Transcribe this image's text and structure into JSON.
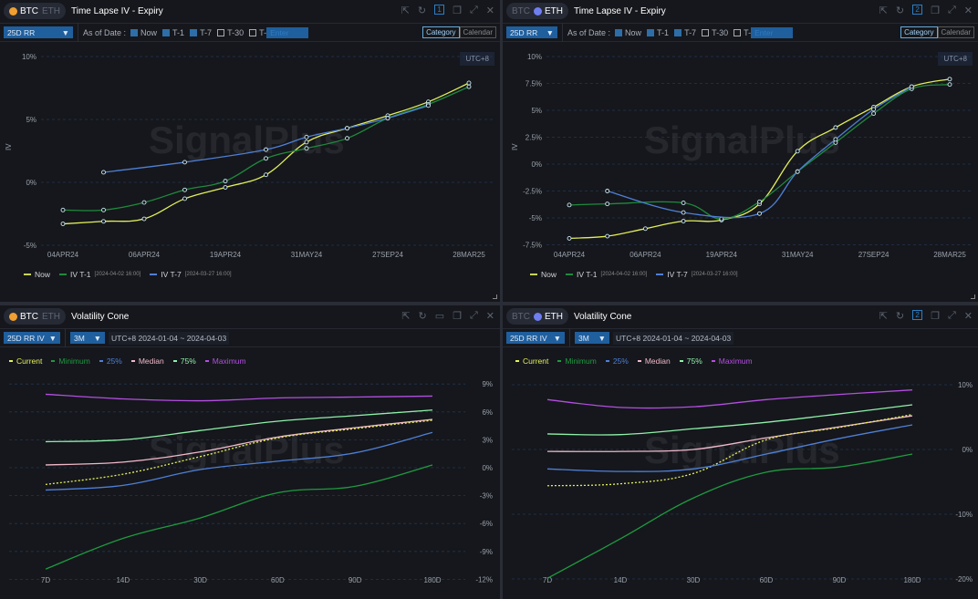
{
  "coins": {
    "btc": "BTC",
    "eth": "ETH"
  },
  "colors": {
    "btc": "#f0a030",
    "eth": "#6f7ff0",
    "now": "#e3ef5a",
    "t1": "#1f8a3c",
    "t7": "#4f7fd6",
    "current": "#e6f05a",
    "minimum": "#1f9a40",
    "p25": "#4f7fd6",
    "median": "#f0b8c8",
    "p75": "#8ff0a8",
    "maximum": "#b44ee0"
  },
  "icons": [
    "external-link-icon",
    "refresh-icon",
    "layout-number-icon",
    "copy-icon",
    "expand-icon",
    "close-icon"
  ],
  "watermark": "SignalPlus",
  "timelapse": {
    "title": "Time Lapse IV - Expiry",
    "metric": "25D RR",
    "as_of": "As of Date :",
    "checks": [
      {
        "label": "Now",
        "on": true
      },
      {
        "label": "T-1",
        "on": true
      },
      {
        "label": "T-7",
        "on": true
      },
      {
        "label": "T-30",
        "on": false
      },
      {
        "label": "T-",
        "on": false
      }
    ],
    "enter_placeholder": "Enter",
    "category": "Category",
    "calendar": "Calendar",
    "utc": "UTC+8",
    "ylabel": "IV",
    "legend": {
      "now": "Now",
      "t1": "IV T-1",
      "t1_date": "[2024-04-02 16:00]",
      "t7": "IV T-7",
      "t7_date": "[2024-03-27 16:00]"
    },
    "left_number": "1",
    "right_number": "2"
  },
  "cone": {
    "title": "Volatility Cone",
    "metric": "25D RR IV",
    "period": "3M",
    "range": "UTC+8 2024-01-04 ~ 2024-04-03",
    "legend": {
      "current": "Current",
      "minimum": "Minimum",
      "p25": "25%",
      "median": "Median",
      "p75": "75%",
      "maximum": "Maximum"
    },
    "right_number": "2"
  },
  "chart_data": [
    {
      "type": "line",
      "title": "BTC Time Lapse IV - Expiry",
      "ylabel": "IV",
      "ylim": [
        -5,
        10
      ],
      "yticks": [
        "10%",
        "5%",
        "0%",
        "-5%"
      ],
      "ytick_values": [
        10,
        5,
        0,
        -5
      ],
      "xticks": [
        "04APR24",
        "06APR24",
        "19APR24",
        "31MAY24",
        "27SEP24",
        "28MAR25"
      ],
      "xtick_index": [
        0,
        2,
        4,
        6,
        8,
        10
      ],
      "series": [
        {
          "name": "Now",
          "key": "now",
          "values": [
            -3.3,
            -3.1,
            -2.9,
            -1.3,
            -0.4,
            0.6,
            3.2,
            4.3,
            5.3,
            6.4,
            7.9
          ]
        },
        {
          "name": "IV T-1",
          "key": "t1",
          "values": [
            -2.2,
            -2.2,
            -1.6,
            -0.6,
            0.1,
            1.9,
            2.7,
            3.5,
            5.1,
            6.2,
            7.6
          ]
        },
        {
          "name": "IV T-7",
          "key": "t7",
          "values": [
            null,
            0.8,
            null,
            1.6,
            null,
            2.6,
            3.6,
            4.3,
            5.1,
            6.1,
            null
          ]
        }
      ]
    },
    {
      "type": "line",
      "title": "ETH Time Lapse IV - Expiry",
      "ylabel": "IV",
      "ylim": [
        -7.5,
        10
      ],
      "yticks": [
        "10%",
        "7.5%",
        "5%",
        "2.5%",
        "0%",
        "-2.5%",
        "-5%",
        "-7.5%"
      ],
      "ytick_values": [
        10,
        7.5,
        5,
        2.5,
        0,
        -2.5,
        -5,
        -7.5
      ],
      "xticks": [
        "04APR24",
        "06APR24",
        "19APR24",
        "31MAY24",
        "27SEP24",
        "28MAR25"
      ],
      "xtick_index": [
        0,
        2,
        4,
        6,
        8,
        10
      ],
      "series": [
        {
          "name": "Now",
          "key": "now",
          "values": [
            -6.9,
            -6.7,
            -6.0,
            -5.3,
            -5.2,
            -3.7,
            1.2,
            3.4,
            5.3,
            7.2,
            7.9
          ]
        },
        {
          "name": "IV T-1",
          "key": "t1",
          "values": [
            -3.8,
            -3.7,
            null,
            -3.6,
            -5.1,
            -3.5,
            -0.7,
            2.0,
            4.7,
            7.0,
            7.4
          ]
        },
        {
          "name": "IV T-7",
          "key": "t7",
          "values": [
            null,
            -2.5,
            null,
            -4.5,
            null,
            -4.6,
            -0.7,
            2.3,
            5.1,
            7.2,
            null
          ]
        }
      ]
    },
    {
      "type": "line",
      "title": "BTC Volatility Cone",
      "ylim": [
        -12,
        9
      ],
      "yticks": [
        "9%",
        "6%",
        "3%",
        "0%",
        "-3%",
        "-6%",
        "-9%",
        "-12%"
      ],
      "ytick_values": [
        9,
        6,
        3,
        0,
        -3,
        -6,
        -9,
        -12
      ],
      "x": [
        "7D",
        "14D",
        "30D",
        "60D",
        "90D",
        "180D"
      ],
      "series": [
        {
          "name": "Maximum",
          "key": "maximum",
          "values": [
            7.9,
            7.4,
            7.2,
            7.5,
            7.6,
            7.7
          ]
        },
        {
          "name": "75%",
          "key": "p75",
          "values": [
            2.8,
            3.0,
            4.0,
            5.0,
            5.6,
            6.2
          ]
        },
        {
          "name": "Median",
          "key": "median",
          "values": [
            0.3,
            0.6,
            1.7,
            3.3,
            4.3,
            5.2
          ]
        },
        {
          "name": "Current",
          "key": "current",
          "dashed": true,
          "values": [
            -1.8,
            -0.7,
            1.2,
            3.2,
            4.2,
            5.1
          ]
        },
        {
          "name": "25%",
          "key": "p25",
          "values": [
            -2.4,
            -1.9,
            -0.2,
            0.7,
            1.6,
            3.8
          ]
        },
        {
          "name": "Minimum",
          "key": "minimum",
          "values": [
            -10.9,
            -7.6,
            -5.4,
            -2.7,
            -2.0,
            0.3
          ]
        }
      ]
    },
    {
      "type": "line",
      "title": "ETH Volatility Cone",
      "ylim": [
        -20,
        10
      ],
      "yticks": [
        "10%",
        "0%",
        "-10%",
        "-20%"
      ],
      "ytick_values": [
        10,
        0,
        -10,
        -20
      ],
      "x": [
        "7D",
        "14D",
        "30D",
        "60D",
        "90D",
        "180D"
      ],
      "series": [
        {
          "name": "Maximum",
          "key": "maximum",
          "values": [
            7.7,
            6.5,
            6.6,
            7.7,
            8.5,
            9.2
          ]
        },
        {
          "name": "75%",
          "key": "p75",
          "values": [
            2.4,
            2.3,
            3.2,
            4.2,
            5.5,
            6.9
          ]
        },
        {
          "name": "Median",
          "key": "median",
          "values": [
            -0.3,
            -0.3,
            0,
            1.8,
            3.5,
            5.2
          ]
        },
        {
          "name": "Current",
          "key": "current",
          "dashed": true,
          "values": [
            -5.6,
            -5.3,
            -3.7,
            1.5,
            3.4,
            5.4
          ]
        },
        {
          "name": "25%",
          "key": "p25",
          "values": [
            -3.0,
            -3.4,
            -3.0,
            -0.7,
            1.7,
            3.8
          ]
        },
        {
          "name": "Minimum",
          "key": "minimum",
          "values": [
            -19.9,
            -13.8,
            -7.5,
            -3.5,
            -2.7,
            -0.7
          ]
        }
      ]
    }
  ]
}
